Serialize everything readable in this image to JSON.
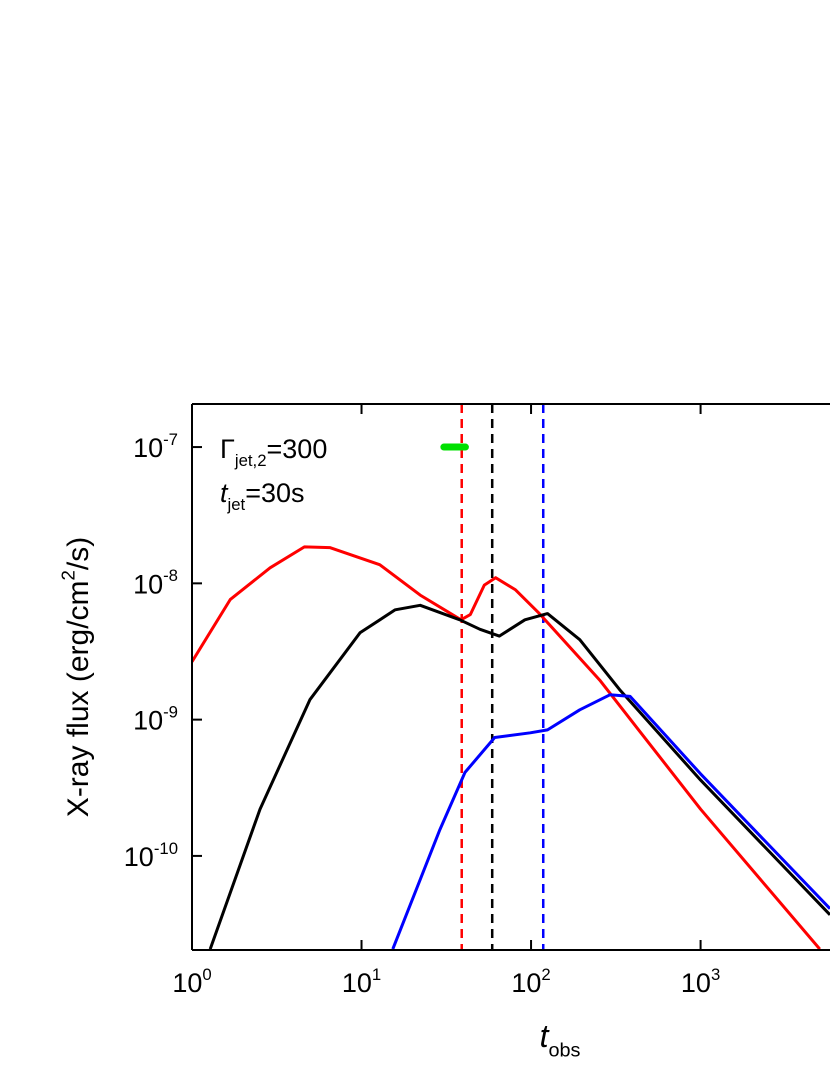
{
  "chart_data": {
    "type": "line",
    "log_x": true,
    "log_y": true,
    "xlabel": {
      "main": "t",
      "sub": "obs"
    },
    "ylabel": {
      "before": "X-ray flux (erg/cm",
      "sup": "2",
      "after": "/s)"
    },
    "xlim": [
      1,
      5800
    ],
    "ylim": [
      2.04e-11,
      2.07e-07
    ],
    "xticks": [
      {
        "value": 1,
        "label": "10",
        "sup": "0"
      },
      {
        "value": 10,
        "label": "10",
        "sup": "1"
      },
      {
        "value": 100,
        "label": "10",
        "sup": "2"
      },
      {
        "value": 1000,
        "label": "10",
        "sup": "3"
      }
    ],
    "yticks": [
      {
        "value": 1e-10,
        "label": "10",
        "sup": "-10"
      },
      {
        "value": 1e-09,
        "label": "10",
        "sup": "-9"
      },
      {
        "value": 1e-08,
        "label": "10",
        "sup": "-8"
      },
      {
        "value": 1e-07,
        "label": "10",
        "sup": "-7"
      }
    ],
    "annotations": [
      {
        "main": "Γ",
        "sub": "jet,2",
        "after": "=300",
        "italic": false
      },
      {
        "main": "t",
        "sub": "jet",
        "after": "=30s",
        "italic": true
      }
    ],
    "series": [
      {
        "color": "#ff0000",
        "x": [
          1,
          1.68,
          2.89,
          4.6,
          6.5,
          12.8,
          22.2,
          38.6,
          43.8,
          53,
          61.8,
          80.6,
          112,
          254,
          1000,
          5050
        ],
        "values": [
          2.66e-09,
          7.6e-09,
          1.3e-08,
          1.85e-08,
          1.83e-08,
          1.37e-08,
          8.2e-09,
          5.4e-09,
          5.9e-09,
          9.7e-09,
          1.1e-08,
          9e-09,
          6e-09,
          1.95e-09,
          2.2e-10,
          2.07e-11
        ]
      },
      {
        "color": "#000000",
        "x": [
          1.28,
          2.52,
          4.96,
          9.8,
          15.8,
          22.2,
          38,
          50,
          65,
          92,
          125,
          194,
          333,
          1000,
          5800
        ],
        "values": [
          2.07e-11,
          2.2e-10,
          1.4e-09,
          4.34e-09,
          6.4e-09,
          6.9e-09,
          5.4e-09,
          4.6e-09,
          4.1e-09,
          5.4e-09,
          6e-09,
          3.86e-09,
          1.66e-09,
          3.6e-10,
          3.7e-11
        ]
      },
      {
        "color": "#0000ff",
        "x": [
          15.3,
          29,
          40.8,
          61,
          99,
          125,
          194,
          292,
          384,
          1000,
          5800
        ],
        "values": [
          2.07e-11,
          1.56e-10,
          4.1e-10,
          7.4e-10,
          8e-10,
          8.4e-10,
          1.18e-09,
          1.52e-09,
          1.48e-09,
          4e-10,
          4.1e-11
        ]
      }
    ],
    "vlines": [
      {
        "x": 39,
        "color": "#ff0000"
      },
      {
        "x": 59,
        "color": "#000000"
      },
      {
        "x": 118,
        "color": "#0000ff"
      }
    ],
    "segment": {
      "x": [
        30.6,
        41
      ],
      "y": 1e-07,
      "color": "#00e000"
    }
  }
}
